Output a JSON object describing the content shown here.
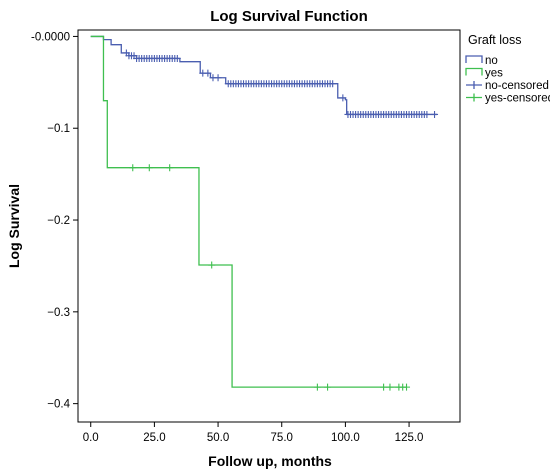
{
  "chart_data": {
    "type": "line",
    "title": "Log Survival Function",
    "xlabel": "Follow up, months",
    "ylabel": "Log Survival",
    "xlim": [
      -5,
      145
    ],
    "ylim": [
      -0.42,
      0.007
    ],
    "xticks": [
      0,
      25,
      50,
      75,
      100,
      125
    ],
    "xtick_labels": [
      "0.0",
      "25.0",
      "50.0",
      "75.0",
      "100.0",
      "125.0"
    ],
    "yticks": [
      0,
      -0.1,
      -0.2,
      -0.3,
      -0.4
    ],
    "ytick_labels": [
      "-0.0000",
      "−0.1",
      "−0.2",
      "−0.3",
      "−0.4"
    ],
    "grid": false,
    "legend": {
      "title": "Graft loss",
      "placement": "right",
      "entries": [
        {
          "label": "no",
          "kind": "step",
          "color": "#4a5eb0"
        },
        {
          "label": "yes",
          "kind": "step",
          "color": "#3fbf4f"
        },
        {
          "label": "no-censored",
          "kind": "censor",
          "color": "#4a5eb0"
        },
        {
          "label": "yes-censored",
          "kind": "censor",
          "color": "#3fbf4f"
        }
      ]
    },
    "series": [
      {
        "name": "no",
        "color": "#4a5eb0",
        "steps": [
          [
            0,
            0
          ],
          [
            5,
            -0.0035
          ],
          [
            8,
            -0.009
          ],
          [
            12,
            -0.018
          ],
          [
            15,
            -0.021
          ],
          [
            18,
            -0.024
          ],
          [
            35,
            -0.0275
          ],
          [
            43,
            -0.04
          ],
          [
            47,
            -0.045
          ],
          [
            53,
            -0.0515
          ],
          [
            97,
            -0.067
          ],
          [
            100,
            -0.069
          ],
          [
            100.5,
            -0.085
          ],
          [
            136,
            -0.085
          ]
        ],
        "censored_x": [
          14,
          15,
          16,
          17,
          18,
          19,
          20,
          21,
          22,
          23,
          24,
          25,
          26,
          27,
          28,
          29,
          30,
          31,
          32,
          33,
          34,
          44,
          46,
          48,
          50,
          54,
          55,
          56,
          57,
          58,
          59,
          60,
          61,
          62,
          63,
          64,
          65,
          66,
          67,
          68,
          69,
          70,
          71,
          72,
          73,
          74,
          75,
          76,
          77,
          78,
          79,
          80,
          81,
          82,
          83,
          84,
          85,
          86,
          87,
          88,
          89,
          90,
          91,
          92,
          93,
          94,
          95,
          99,
          101,
          102,
          103,
          104,
          105,
          106,
          107,
          108,
          109,
          110,
          111,
          112,
          113,
          114,
          115,
          116,
          117,
          118,
          119,
          120,
          121,
          122,
          123,
          124,
          125,
          126,
          127,
          128,
          129,
          130,
          131,
          132,
          135
        ]
      },
      {
        "name": "yes",
        "color": "#3fbf4f",
        "steps": [
          [
            0,
            0
          ],
          [
            5,
            -0.07
          ],
          [
            6.5,
            -0.143
          ],
          [
            42.5,
            -0.249
          ],
          [
            55.5,
            -0.382
          ],
          [
            124,
            -0.382
          ]
        ],
        "censored_x": [
          16.5,
          23,
          31,
          47.5,
          89,
          93,
          115,
          117.5,
          121,
          122.5,
          124
        ]
      }
    ]
  }
}
